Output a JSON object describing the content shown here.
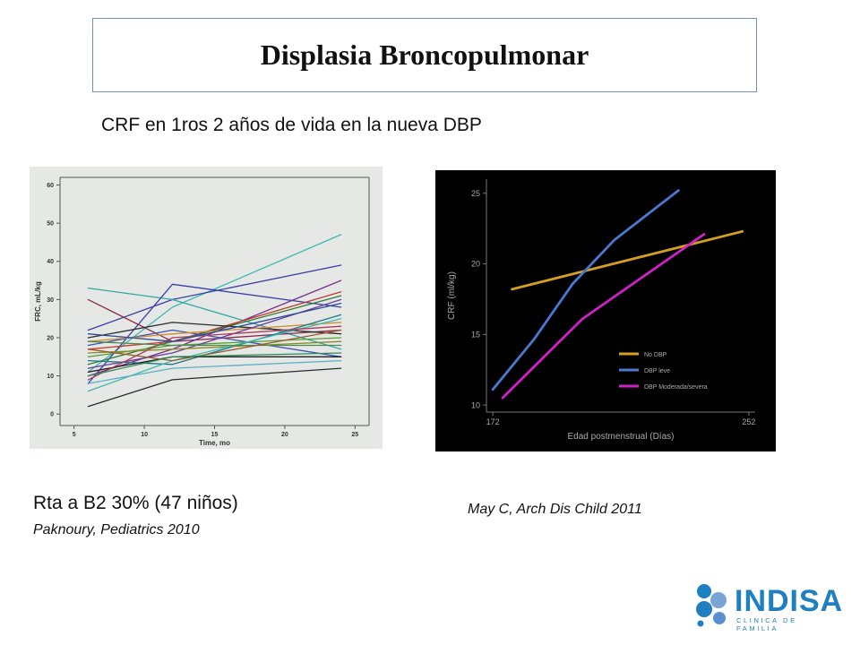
{
  "slide": {
    "title": "Displasia Broncopulmonar",
    "subtitle": "CRF en 1ros 2 años de vida en la nueva DBP",
    "caption_left": "Rta  a B2 30% (47 niños)",
    "ref_left": "Paknoury, Pediatrics 2010",
    "ref_right": "May C, Arch Dis Child 2011",
    "logo_text": "INDISA",
    "logo_subtext": "CLINICA DE FAMILIA",
    "logo_color": "#1f7fc0"
  },
  "chart_data": [
    {
      "type": "line",
      "xlabel": "Time, mo",
      "ylabel": "FRC, mL/kg",
      "xticks": [
        5,
        10,
        15,
        20,
        25
      ],
      "yticks": [
        0,
        10,
        20,
        30,
        40,
        50,
        60
      ],
      "xlim": [
        4,
        26
      ],
      "ylim": [
        -3,
        62
      ],
      "grid": false,
      "background": "#e6e8e6",
      "series": [
        {
          "color": "#3fb7b0",
          "points": [
            [
              6,
              11
            ],
            [
              12,
              28
            ],
            [
              24,
              47
            ]
          ]
        },
        {
          "color": "#3a3fa8",
          "points": [
            [
              6,
              22
            ],
            [
              12,
              30
            ],
            [
              24,
              39
            ]
          ]
        },
        {
          "color": "#2fa7a7",
          "points": [
            [
              6,
              33
            ],
            [
              12,
              30
            ],
            [
              24,
              17
            ]
          ]
        },
        {
          "color": "#3a3fa8",
          "points": [
            [
              6,
              8
            ],
            [
              12,
              34
            ],
            [
              24,
              28
            ]
          ]
        },
        {
          "color": "#8a2a4a",
          "points": [
            [
              6,
              30
            ],
            [
              12,
              19
            ],
            [
              24,
              22
            ]
          ]
        },
        {
          "color": "#7a2d8e",
          "points": [
            [
              6,
              10
            ],
            [
              12,
              17
            ],
            [
              24,
              35
            ]
          ]
        },
        {
          "color": "#c23a2e",
          "points": [
            [
              6,
              17
            ],
            [
              12,
              19
            ],
            [
              24,
              32
            ]
          ]
        },
        {
          "color": "#2e7d32",
          "points": [
            [
              6,
              13
            ],
            [
              12,
              19
            ],
            [
              24,
              31
            ]
          ]
        },
        {
          "color": "#2b2b2b",
          "points": [
            [
              6,
              2
            ],
            [
              12,
              9
            ],
            [
              24,
              12
            ]
          ]
        },
        {
          "color": "#2b2b2b",
          "points": [
            [
              6,
              20
            ],
            [
              12,
              24
            ],
            [
              24,
              21
            ]
          ]
        },
        {
          "color": "#3a56b0",
          "points": [
            [
              6,
              18
            ],
            [
              12,
              22
            ],
            [
              24,
              15
            ]
          ]
        },
        {
          "color": "#5a9e3a",
          "points": [
            [
              6,
              15
            ],
            [
              12,
              18
            ],
            [
              24,
              20
            ]
          ]
        },
        {
          "color": "#d08a2a",
          "points": [
            [
              6,
              19
            ],
            [
              12,
              21
            ],
            [
              24,
              24
            ]
          ]
        },
        {
          "color": "#6a3d9a",
          "points": [
            [
              6,
              12
            ],
            [
              12,
              16
            ],
            [
              24,
              30
            ]
          ]
        },
        {
          "color": "#1a7a8a",
          "points": [
            [
              6,
              14
            ],
            [
              12,
              13
            ],
            [
              24,
              26
            ]
          ]
        },
        {
          "color": "#8a8a2a",
          "points": [
            [
              6,
              16
            ],
            [
              12,
              17
            ],
            [
              24,
              19
            ]
          ]
        },
        {
          "color": "#3fb7b0",
          "points": [
            [
              6,
              6
            ],
            [
              12,
              14
            ],
            [
              24,
              25
            ]
          ]
        },
        {
          "color": "#222222",
          "points": [
            [
              6,
              11
            ],
            [
              12,
              15
            ],
            [
              24,
              15
            ]
          ]
        },
        {
          "color": "#b03a5a",
          "points": [
            [
              6,
              9
            ],
            [
              12,
              20
            ],
            [
              24,
              23
            ]
          ]
        },
        {
          "color": "#4a8a4a",
          "points": [
            [
              6,
              19
            ],
            [
              12,
              18
            ],
            [
              24,
              18
            ]
          ]
        },
        {
          "color": "#2a4a9a",
          "points": [
            [
              6,
              21
            ],
            [
              12,
              19
            ],
            [
              24,
              29
            ]
          ]
        },
        {
          "color": "#9a5a2a",
          "points": [
            [
              6,
              17
            ],
            [
              12,
              14
            ],
            [
              24,
              22
            ]
          ]
        },
        {
          "color": "#5ab0c0",
          "points": [
            [
              6,
              8
            ],
            [
              12,
              12
            ],
            [
              24,
              14
            ]
          ]
        },
        {
          "color": "#2e8b57",
          "points": [
            [
              6,
              10
            ],
            [
              12,
              15
            ],
            [
              24,
              16
            ]
          ]
        }
      ]
    },
    {
      "type": "line",
      "xlabel": "Edad postmenstrual (Días)",
      "ylabel": "CRF (ml/kg)",
      "xticks": [
        172,
        252
      ],
      "yticks": [
        10,
        15,
        20,
        25
      ],
      "xlim": [
        170,
        254
      ],
      "ylim": [
        9.5,
        26
      ],
      "grid": false,
      "background": "#000000",
      "legend": "bottom-right",
      "series": [
        {
          "name": "No DBP",
          "color": "#d4a020",
          "points": [
            [
              178,
              18.2
            ],
            [
              250,
              22.3
            ]
          ]
        },
        {
          "name": "DBP leve",
          "color": "#4a78d0",
          "points": [
            [
              172,
              11.1
            ],
            [
              185,
              14.7
            ],
            [
              197,
              18.6
            ],
            [
              210,
              21.7
            ],
            [
              230,
              25.2
            ]
          ]
        },
        {
          "name": "DBP Moderada/severa",
          "color": "#d020c8",
          "points": [
            [
              175,
              10.5
            ],
            [
              200,
              16.1
            ],
            [
              238,
              22.1
            ]
          ]
        }
      ]
    }
  ]
}
